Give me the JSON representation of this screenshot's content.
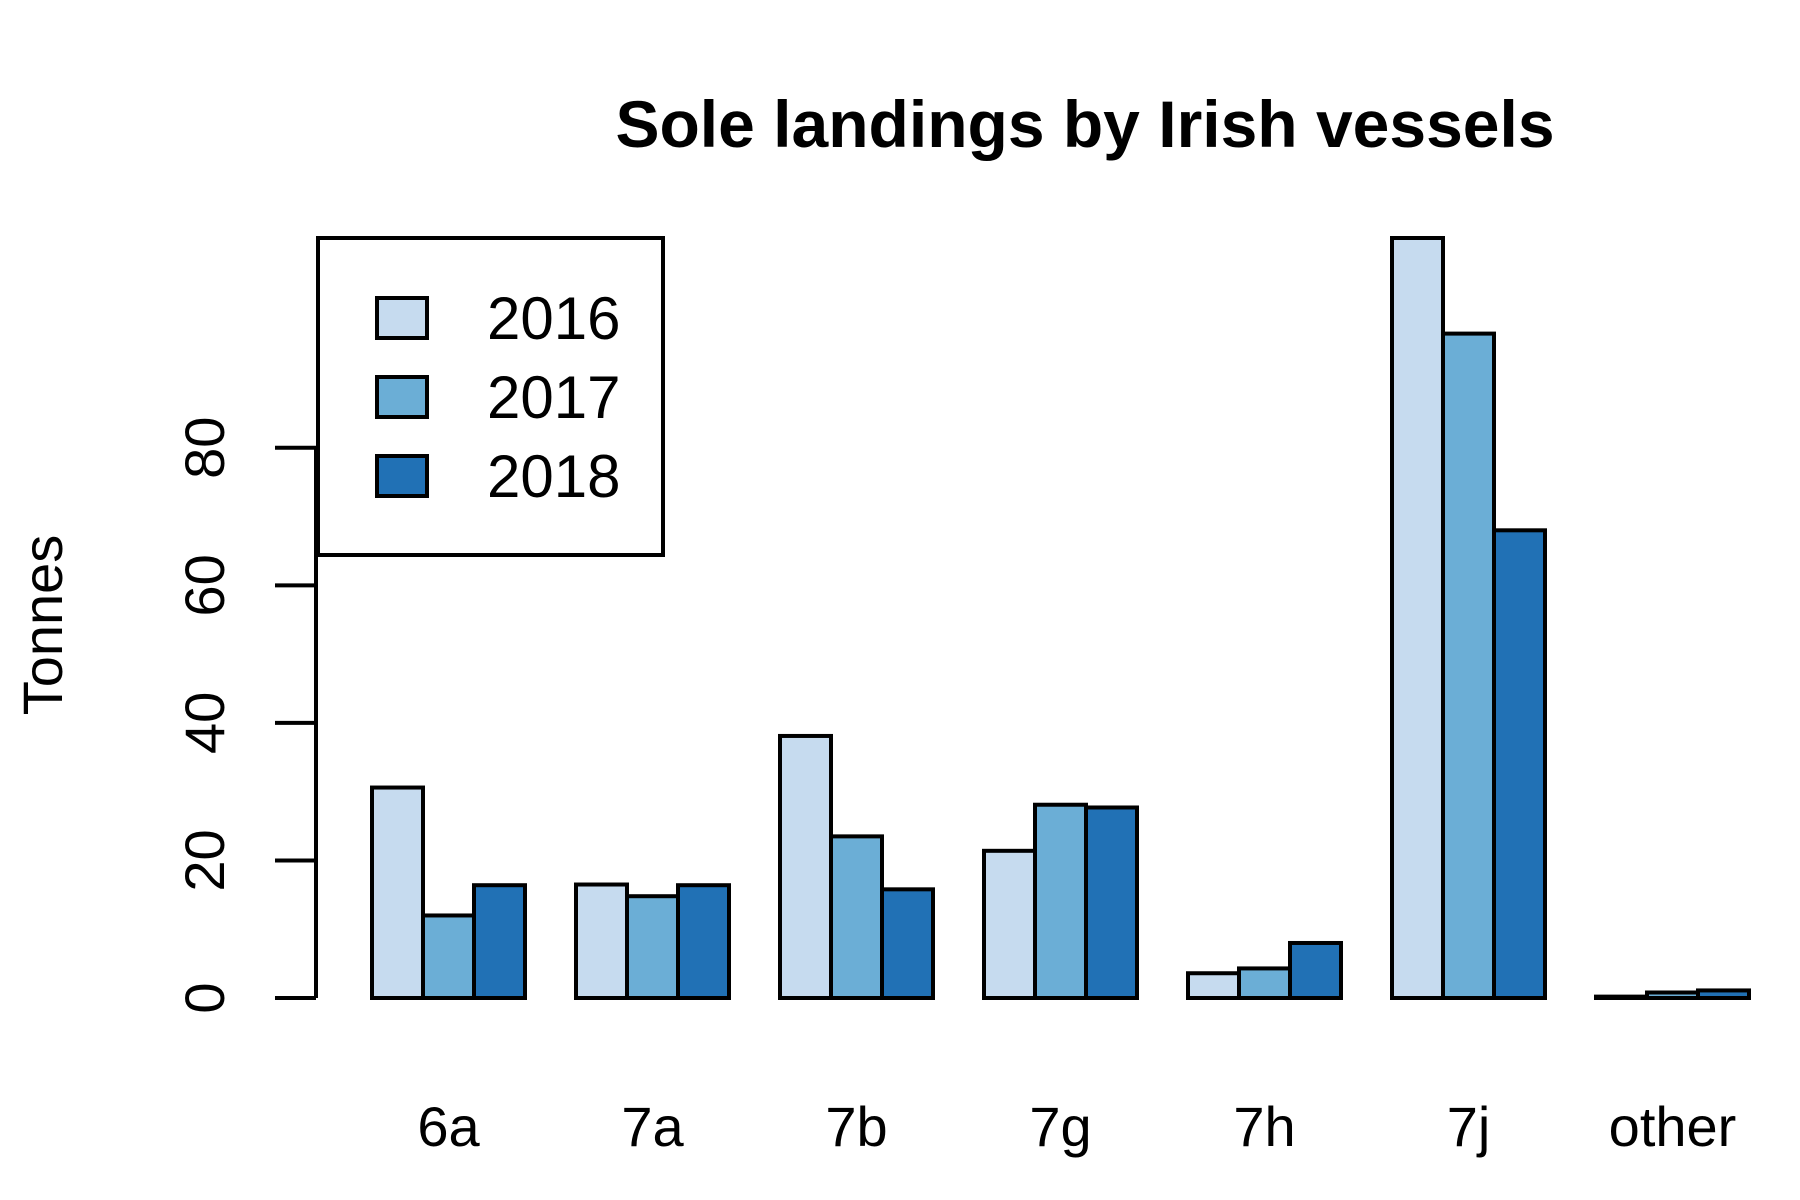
{
  "chart_data": {
    "type": "bar",
    "title": "Sole landings by Irish vessels",
    "xlabel": "",
    "ylabel": "Tonnes",
    "categories": [
      "6a",
      "7a",
      "7b",
      "7g",
      "7h",
      "7j",
      "other"
    ],
    "series": [
      {
        "name": "2016",
        "color": "#c6dbef",
        "values": [
          30.6,
          16.5,
          38.1,
          21.4,
          3.6,
          110.5,
          0.2
        ]
      },
      {
        "name": "2017",
        "color": "#6baed6",
        "values": [
          12.0,
          14.8,
          23.5,
          28.1,
          4.3,
          96.6,
          0.8
        ]
      },
      {
        "name": "2018",
        "color": "#2171b5",
        "values": [
          16.4,
          16.4,
          15.8,
          27.7,
          8.0,
          68.0,
          1.1
        ]
      }
    ],
    "yticks": [
      0,
      20,
      40,
      60,
      80
    ],
    "ylim": [
      0,
      110.5
    ],
    "legend": "top-left",
    "grid": false
  }
}
